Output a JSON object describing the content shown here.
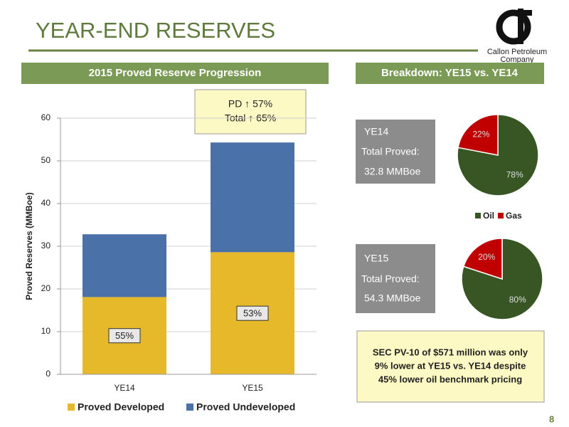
{
  "title": "YEAR-END RESERVES",
  "logo": {
    "line1": "Callon Petroleum",
    "line2": "Company"
  },
  "page_number": "8",
  "left_header": "2015 Proved Reserve Progression",
  "right_header": "Breakdown: YE15 vs. YE14",
  "callout": [
    "PD ↑ 57%",
    "Total ↑ 65%"
  ],
  "ye14_box": [
    "YE14",
    "Total Proved:",
    "32.8 MMBoe"
  ],
  "ye15_box": [
    "YE15",
    "Total Proved:",
    "54.3 MMBoe"
  ],
  "sec_box": [
    "SEC PV-10 of $571 million was only",
    "9% lower at YE15 vs. YE14 despite",
    "45% lower oil benchmark pricing"
  ],
  "pie_legend": {
    "categories": [
      "Oil",
      "Gas"
    ],
    "colors": [
      "#375623",
      "#c00000"
    ]
  },
  "chart_data": [
    {
      "type": "stacked_bar",
      "ylabel": "Proved Reserves (MMBoe)",
      "categories": [
        "YE14",
        "YE15"
      ],
      "series": [
        {
          "name": "Proved Developed",
          "color": "#e6b92b",
          "values": [
            18.1,
            28.6
          ]
        },
        {
          "name": "Proved Undeveloped",
          "color": "#4a72a8",
          "values": [
            14.7,
            25.7
          ]
        }
      ],
      "annotations": [
        "55%",
        "53%"
      ],
      "ylim": [
        0,
        60
      ],
      "yticks": [
        0,
        10,
        20,
        30,
        40,
        50,
        60
      ],
      "grid": true
    },
    {
      "type": "pie",
      "values": [
        78,
        22
      ],
      "value_labels": [
        "78%",
        "22%"
      ]
    },
    {
      "type": "pie",
      "values": [
        80,
        20
      ],
      "value_labels": [
        "80%",
        "20%"
      ]
    }
  ]
}
